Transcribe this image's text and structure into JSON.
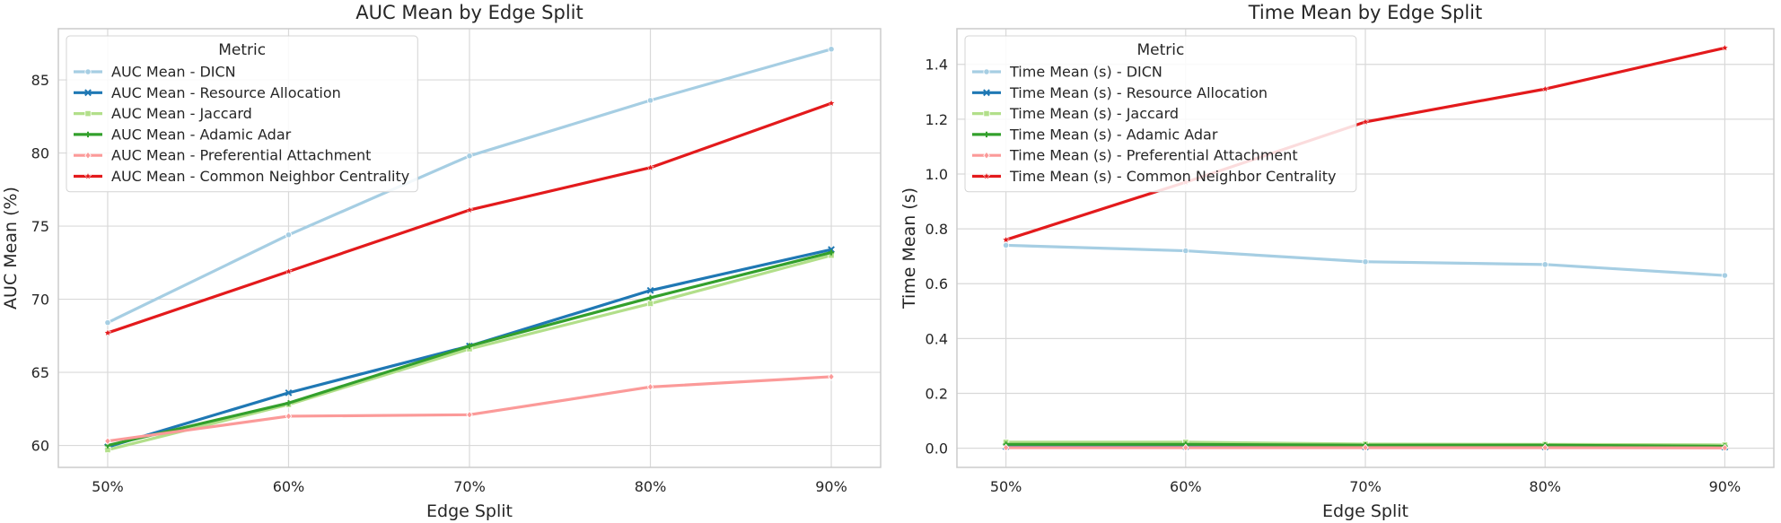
{
  "colors": {
    "DICN": "#a6cee3",
    "Resource Allocation": "#1f78b4",
    "Jaccard": "#b2df8a",
    "Adamic Adar": "#33a02c",
    "Preferential Attachment": "#fb9a99",
    "Common Neighbor Centrality": "#e31a1c"
  },
  "chart_data": [
    {
      "type": "line",
      "title": "AUC Mean by Edge Split",
      "xlabel": "Edge Split",
      "ylabel": "AUC Mean (%)",
      "categories": [
        "50%",
        "60%",
        "70%",
        "80%",
        "90%"
      ],
      "ylim": [
        58.5,
        88.5
      ],
      "yticks": [
        60,
        65,
        70,
        75,
        80,
        85
      ],
      "ytick_labels": [
        "60",
        "65",
        "70",
        "75",
        "80",
        "85"
      ],
      "grid": true,
      "legend_title": "Metric",
      "legend_position": "top-left",
      "series": [
        {
          "name": "AUC Mean - DICN",
          "key": "DICN",
          "marker": "circle",
          "values": [
            68.4,
            74.4,
            79.8,
            83.6,
            87.1
          ]
        },
        {
          "name": "AUC Mean - Resource Allocation",
          "key": "Resource Allocation",
          "marker": "x",
          "values": [
            59.9,
            63.6,
            66.8,
            70.6,
            73.4
          ]
        },
        {
          "name": "AUC Mean - Jaccard",
          "key": "Jaccard",
          "marker": "square",
          "values": [
            59.7,
            62.8,
            66.6,
            69.7,
            73.0
          ]
        },
        {
          "name": "AUC Mean - Adamic Adar",
          "key": "Adamic Adar",
          "marker": "plus",
          "values": [
            60.0,
            62.9,
            66.8,
            70.1,
            73.2
          ]
        },
        {
          "name": "AUC Mean - Preferential Attachment",
          "key": "Preferential Attachment",
          "marker": "diamond",
          "values": [
            60.3,
            62.0,
            62.1,
            64.0,
            64.7
          ]
        },
        {
          "name": "AUC Mean - Common Neighbor Centrality",
          "key": "Common Neighbor Centrality",
          "marker": "star",
          "values": [
            67.7,
            71.9,
            76.1,
            79.0,
            83.4
          ]
        }
      ]
    },
    {
      "type": "line",
      "title": "Time Mean by Edge Split",
      "xlabel": "Edge Split",
      "ylabel": "Time Mean (s)",
      "categories": [
        "50%",
        "60%",
        "70%",
        "80%",
        "90%"
      ],
      "ylim": [
        -0.07,
        1.53
      ],
      "yticks": [
        0.0,
        0.2,
        0.4,
        0.6,
        0.8,
        1.0,
        1.2,
        1.4
      ],
      "ytick_labels": [
        "0.0",
        "0.2",
        "0.4",
        "0.6",
        "0.8",
        "1.0",
        "1.2",
        "1.4"
      ],
      "grid": true,
      "legend_title": "Metric",
      "legend_position": "top-left",
      "series": [
        {
          "name": "Time Mean (s) - DICN",
          "key": "DICN",
          "marker": "circle",
          "values": [
            0.74,
            0.72,
            0.68,
            0.67,
            0.63
          ]
        },
        {
          "name": "Time Mean (s) - Resource Allocation",
          "key": "Resource Allocation",
          "marker": "x",
          "values": [
            0.006,
            0.006,
            0.005,
            0.005,
            0.004
          ]
        },
        {
          "name": "Time Mean (s) - Jaccard",
          "key": "Jaccard",
          "marker": "square",
          "values": [
            0.022,
            0.022,
            0.015,
            0.014,
            0.012
          ]
        },
        {
          "name": "Time Mean (s) - Adamic Adar",
          "key": "Adamic Adar",
          "marker": "plus",
          "values": [
            0.014,
            0.014,
            0.011,
            0.011,
            0.007
          ]
        },
        {
          "name": "Time Mean (s) - Preferential Attachment",
          "key": "Preferential Attachment",
          "marker": "diamond",
          "values": [
            0.002,
            0.002,
            0.002,
            0.002,
            0.001
          ]
        },
        {
          "name": "Time Mean (s) - Common Neighbor Centrality",
          "key": "Common Neighbor Centrality",
          "marker": "star",
          "values": [
            0.76,
            0.97,
            1.19,
            1.31,
            1.46
          ]
        }
      ]
    }
  ]
}
